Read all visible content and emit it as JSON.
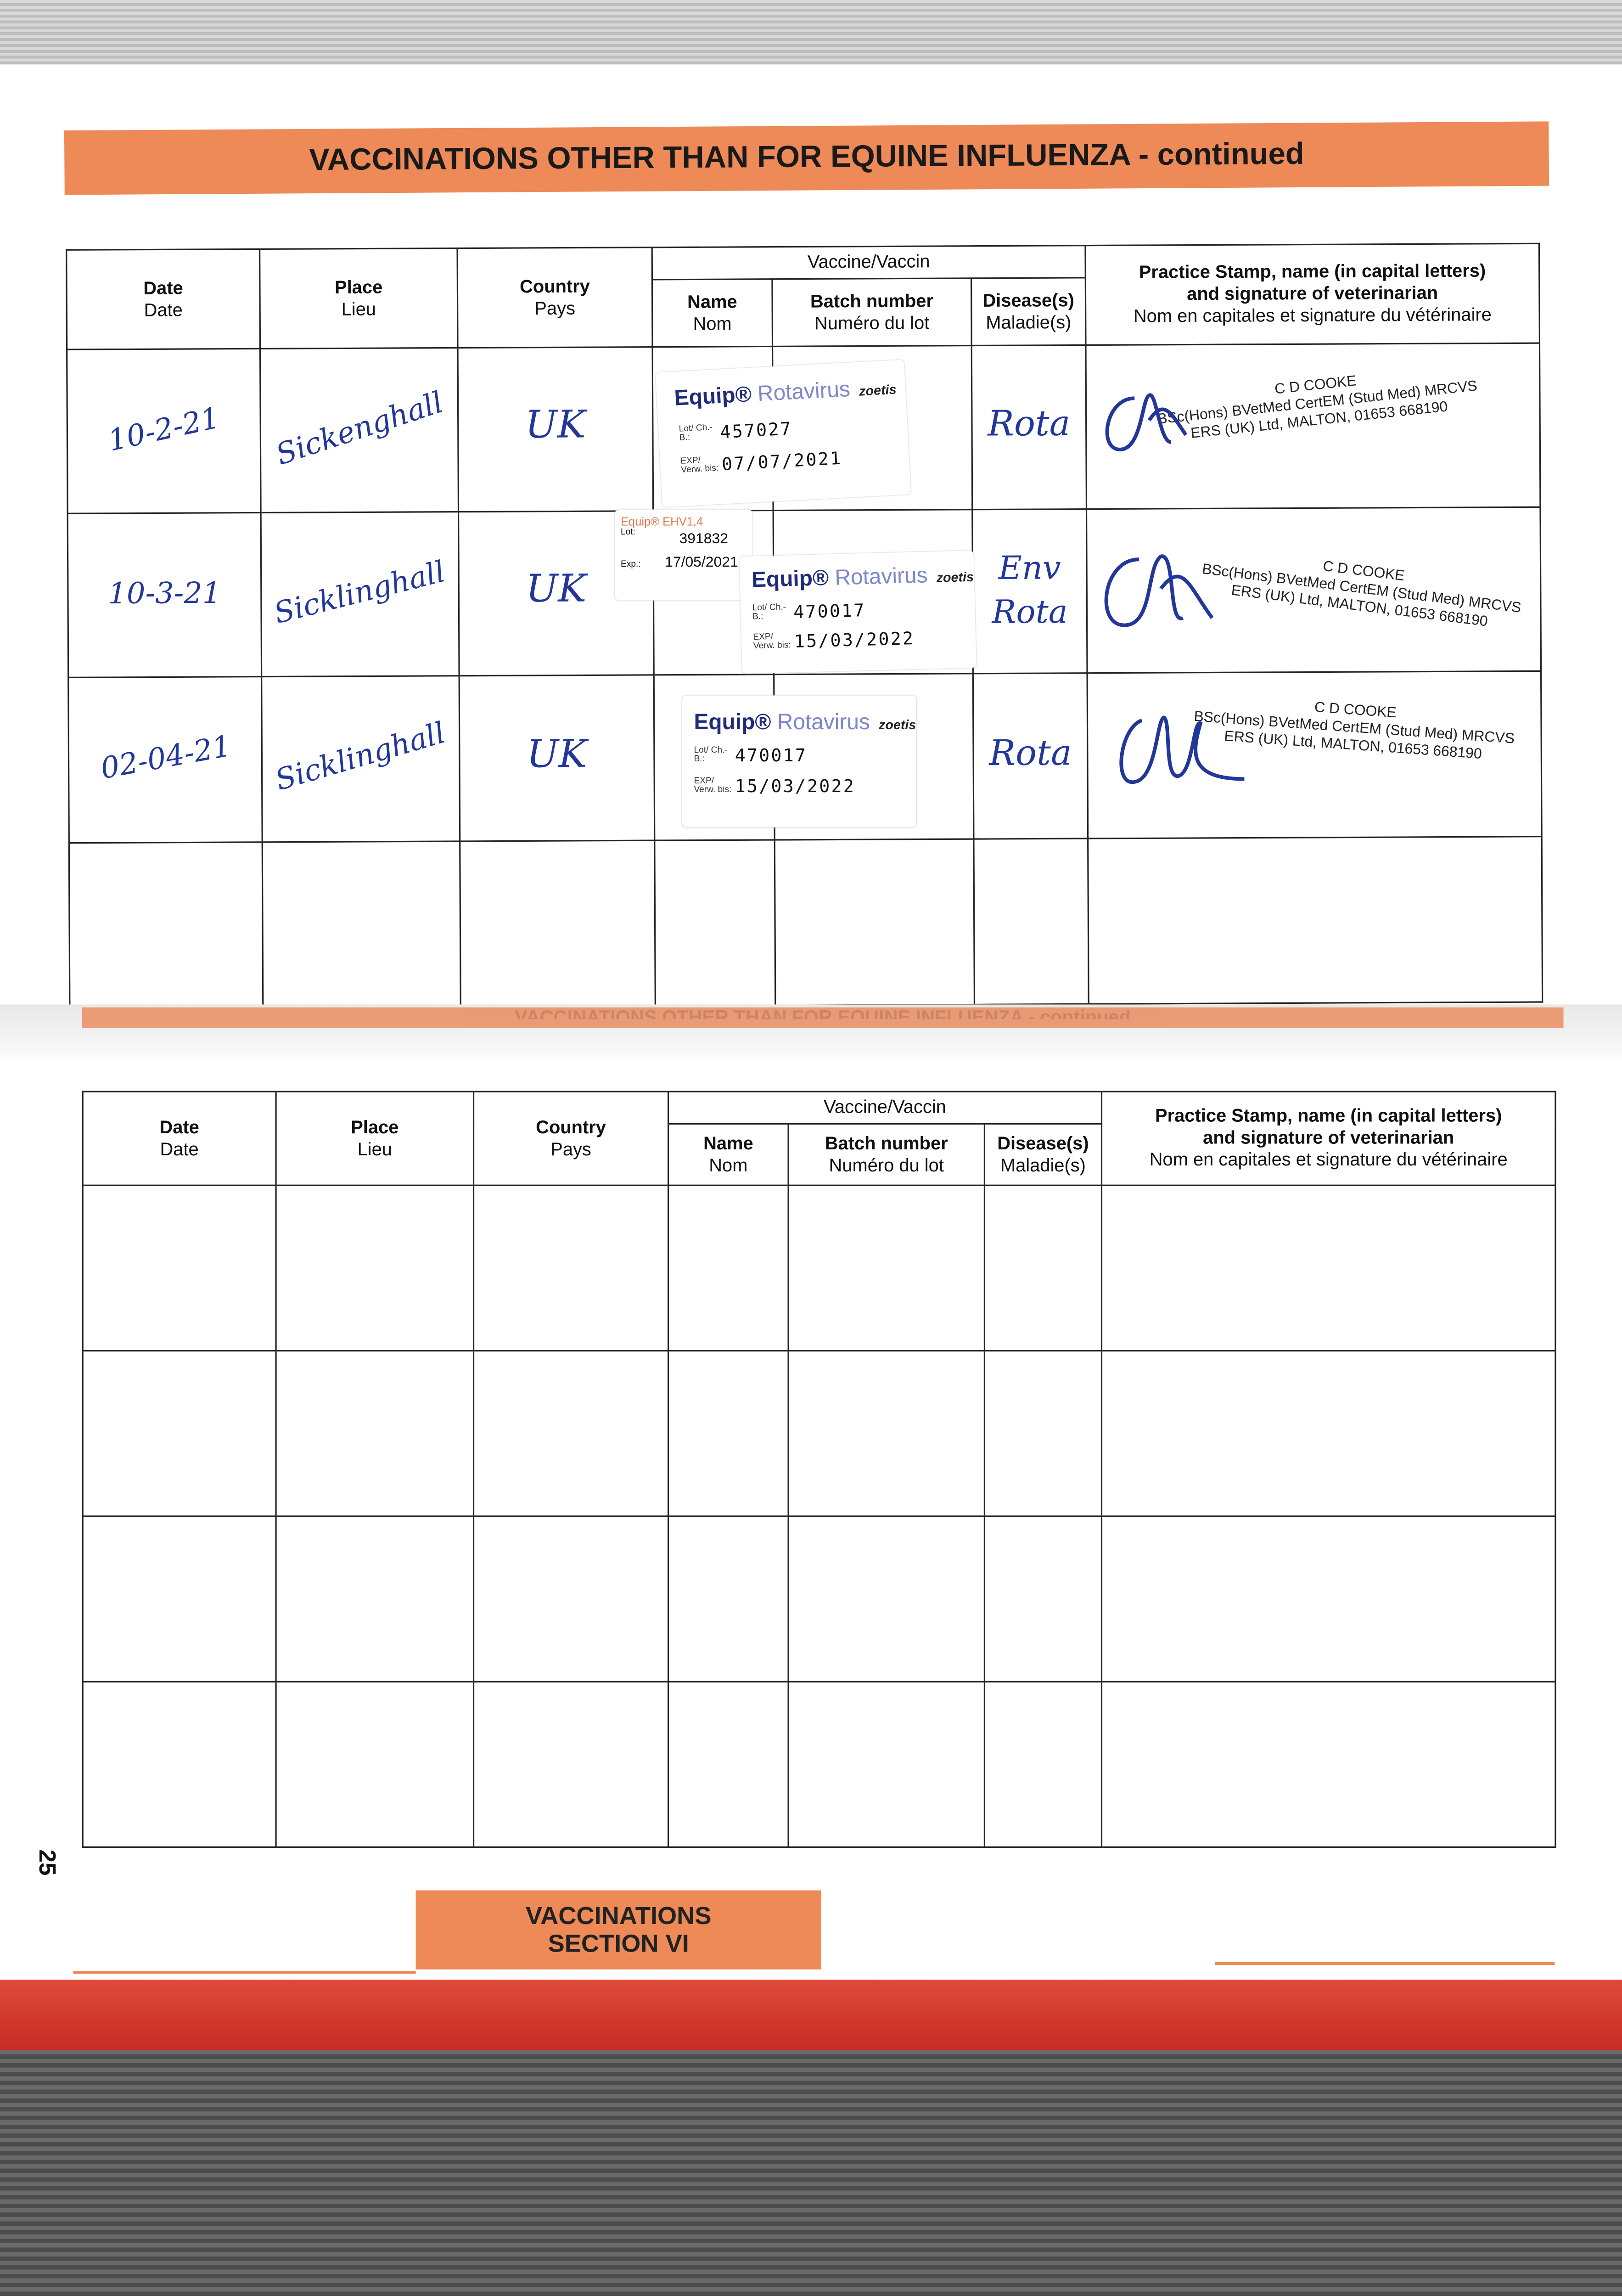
{
  "banner_title": "VACCINATIONS OTHER THAN FOR EQUINE INFLUENZA - continued",
  "faded_banner_title": "VACCINATIONS OTHER THAN FOR EQUINE INFLUENZA - continued",
  "headers": {
    "date": {
      "en": "Date",
      "fr": "Date"
    },
    "place": {
      "en": "Place",
      "fr": "Lieu"
    },
    "country": {
      "en": "Country",
      "fr": "Pays"
    },
    "vaccine": "Vaccine/Vaccin",
    "name": {
      "en": "Name",
      "fr": "Nom"
    },
    "batch": {
      "en": "Batch number",
      "fr": "Numéro du lot"
    },
    "disease": {
      "en": "Disease(s)",
      "fr": "Maladie(s)"
    },
    "stamp": {
      "line1": "Practice Stamp, name (in capital letters)",
      "line2": "and signature of veterinarian",
      "line3": "Nom en capitales et signature du vétérinaire"
    }
  },
  "label_text": {
    "lot": "Lot/ Ch.-B.:",
    "exp": "EXP/ Verw. bis:",
    "brand": "Equip®",
    "product": "Rotavirus",
    "maker": "zoetis",
    "ehv_brand": "Equip® EHV1,4",
    "ehv_lot": "Lot:",
    "ehv_exp": "Exp.:"
  },
  "rows": [
    {
      "date": "10-2-21",
      "place": "Sickenghall",
      "country": "UK",
      "disease": "Rota",
      "label": {
        "lot": "457027",
        "exp": "07/07/2021"
      },
      "stamp": {
        "name": "C D COOKE",
        "line2": "BSc(Hons) BVetMed CertEM (Stud Med) MRCVS",
        "line3": "ERS (UK) Ltd, MALTON, 01653 668190"
      }
    },
    {
      "date": "10-3-21",
      "place": "Sicklinghall",
      "country": "UK",
      "disease": "Env Rota",
      "ehv_label": {
        "lot": "391832",
        "exp": "17/05/2021"
      },
      "label": {
        "lot": "470017",
        "exp": "15/03/2022"
      },
      "stamp": {
        "name": "C D COOKE",
        "line2": "BSc(Hons) BVetMed CertEM (Stud Med) MRCVS",
        "line3": "ERS (UK) Ltd, MALTON, 01653 668190"
      }
    },
    {
      "date": "02-04-21",
      "place": "Sicklinghall",
      "country": "UK",
      "disease": "Rota",
      "label": {
        "lot": "470017",
        "exp": "15/03/2022"
      },
      "stamp": {
        "name": "C D COOKE",
        "line2": "BSc(Hons) BVetMed CertEM (Stud Med) MRCVS",
        "line3": "ERS (UK) Ltd, MALTON, 01653 668190"
      }
    }
  ],
  "page_number": "25",
  "section": {
    "line1": "VACCINATIONS",
    "line2": "SECTION VI"
  },
  "colors": {
    "orange": "#ee8a58",
    "ink": "#23379a",
    "red_edge": "#d83a2e"
  }
}
